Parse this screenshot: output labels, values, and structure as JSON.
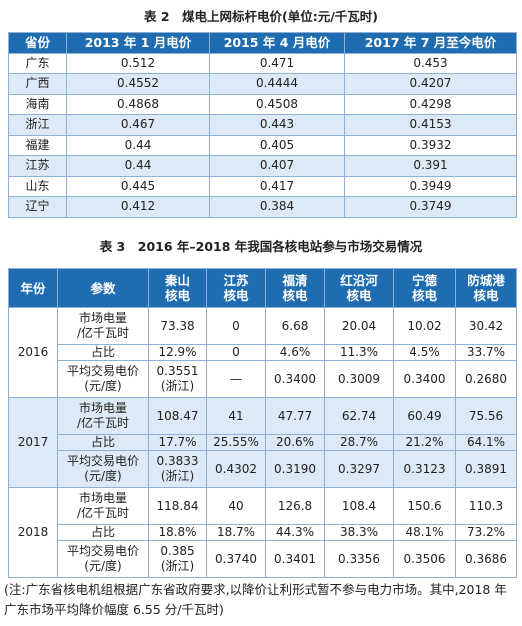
{
  "table2": {
    "title": "表 2　煤电上网标杆电价(单位:元/千瓦时)",
    "header": [
      "省份",
      "2013 年 1 月电价",
      "2015 年 4 月电价",
      "2017 年 7 月至今电价"
    ],
    "rows": [
      [
        "广东",
        "0.512",
        "0.471",
        "0.453"
      ],
      [
        "广西",
        "0.4552",
        "0.4444",
        "0.4207"
      ],
      [
        "海南",
        "0.4868",
        "0.4508",
        "0.4298"
      ],
      [
        "浙江",
        "0.467",
        "0.443",
        "0.4153"
      ],
      [
        "福建",
        "0.44",
        "0.405",
        "0.3932"
      ],
      [
        "江苏",
        "0.44",
        "0.407",
        "0.391"
      ],
      [
        "山东",
        "0.445",
        "0.417",
        "0.3949"
      ],
      [
        "辽宁",
        "0.412",
        "0.384",
        "0.3749"
      ]
    ]
  },
  "table3": {
    "title": "表 3　2016 年–2018 年我国各核电站参与市场交易情况",
    "header": [
      "年份",
      "参数",
      [
        "秦山",
        "核电"
      ],
      [
        "江苏",
        "核电"
      ],
      [
        "福清",
        "核电"
      ],
      [
        "红沿河",
        "核电"
      ],
      [
        "宁德",
        "核电"
      ],
      [
        "防城港",
        "核电"
      ]
    ],
    "groups": [
      {
        "year": "2016",
        "rows": [
          {
            "param": [
              "市场电量",
              "/亿千瓦时"
            ],
            "cells": [
              "73.38",
              "0",
              "6.68",
              "20.04",
              "10.02",
              "30.42"
            ]
          },
          {
            "param": [
              "占比"
            ],
            "cells": [
              "12.9%",
              "0",
              "4.6%",
              "11.3%",
              "4.5%",
              "33.7%"
            ]
          },
          {
            "param": [
              "平均交易电价",
              "(元/度)"
            ],
            "cells": [
              [
                "0.3551",
                "(浙江)"
              ],
              "—",
              "0.3400",
              "0.3009",
              "0.3400",
              "0.2680"
            ]
          }
        ]
      },
      {
        "year": "2017",
        "rows": [
          {
            "param": [
              "市场电量",
              "/亿千瓦时"
            ],
            "cells": [
              "108.47",
              "41",
              "47.77",
              "62.74",
              "60.49",
              "75.56"
            ]
          },
          {
            "param": [
              "占比"
            ],
            "cells": [
              "17.7%",
              "25.55%",
              "20.6%",
              "28.7%",
              "21.2%",
              "64.1%"
            ]
          },
          {
            "param": [
              "平均交易电价",
              "(元/度)"
            ],
            "cells": [
              [
                "0.3833",
                "(浙江)"
              ],
              "0.4302",
              "0.3190",
              "0.3297",
              "0.3123",
              "0.3891"
            ]
          }
        ]
      },
      {
        "year": "2018",
        "rows": [
          {
            "param": [
              "市场电量",
              "/亿千瓦时"
            ],
            "cells": [
              "118.84",
              "40",
              "126.8",
              "108.4",
              "150.6",
              "110.3"
            ]
          },
          {
            "param": [
              "占比"
            ],
            "cells": [
              "18.8%",
              "18.7%",
              "44.3%",
              "38.3%",
              "48.1%",
              "73.2%"
            ]
          },
          {
            "param": [
              "平均交易电价",
              "(元/度)"
            ],
            "cells": [
              [
                "0.385",
                "(浙江)"
              ],
              "0.3740",
              "0.3401",
              "0.3356",
              "0.3506",
              "0.3686"
            ]
          }
        ]
      }
    ]
  },
  "note": "(注:广东省核电机组根据广东省政府要求,以降价让利形式暂不参与电力市场。其中,2018 年广东市场平均降价幅度 6.55 分/千瓦时)"
}
